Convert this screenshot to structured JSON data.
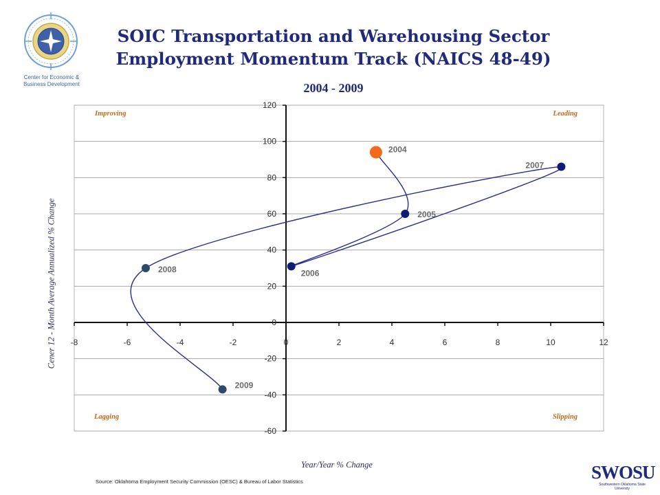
{
  "header": {
    "title_line1": "SOIC Transportation and Warehousing Sector",
    "title_line2": "Employment Momentum Track (NAICS 48-49)",
    "subtitle": "2004 - 2009",
    "logo_caption_line1": "Center for Economic &",
    "logo_caption_line2": "Business Development"
  },
  "footer": {
    "source": "Source: Oklahoma Employment Security Commission (OESC) & Bureau of Labor Statistics",
    "brand": "SWOSU",
    "brand_sub": "Southwestern Oklahoma State University"
  },
  "colors": {
    "title": "#1f2a78",
    "track_line": "#2a2d86",
    "highlight_point": "#f26b1d",
    "quadrant_label": "#c06a1c",
    "gray_point": "#2e4a6b"
  },
  "chart_data": {
    "type": "scatter",
    "title": "SOIC Transportation and Warehousing Sector Employment Momentum Track (NAICS 48-49)",
    "subtitle": "2004 - 2009",
    "xlabel": "Year/Year % Change",
    "ylabel": "Cener 12 - Month Average Annualized % Change",
    "xlim": [
      -8,
      12
    ],
    "ylim": [
      -60,
      120
    ],
    "xticks": [
      -8,
      -6,
      -4,
      -2,
      0,
      2,
      4,
      6,
      8,
      10,
      12
    ],
    "yticks": [
      -60,
      -40,
      -20,
      0,
      20,
      40,
      60,
      80,
      100,
      120
    ],
    "grid": "horizontal",
    "connected": true,
    "points": [
      {
        "label": "2004",
        "x": 3.4,
        "y": 94,
        "color": "#f26b1d",
        "size": 9
      },
      {
        "label": "2005",
        "x": 4.5,
        "y": 60,
        "color": "#0d1d73",
        "size": 6
      },
      {
        "label": "2006",
        "x": 0.2,
        "y": 31,
        "color": "#0d1d73",
        "size": 6
      },
      {
        "label": "2007",
        "x": 10.4,
        "y": 86,
        "color": "#0d1d73",
        "size": 6
      },
      {
        "label": "2008",
        "x": -5.3,
        "y": 30,
        "color": "#2e4a6b",
        "size": 6
      },
      {
        "label": "2009",
        "x": -2.4,
        "y": -37,
        "color": "#2e4a6b",
        "size": 6
      }
    ],
    "quadrants": {
      "top_left": "Improving",
      "top_right": "Leading",
      "bottom_left": "Lagging",
      "bottom_right": "Slipping"
    }
  }
}
